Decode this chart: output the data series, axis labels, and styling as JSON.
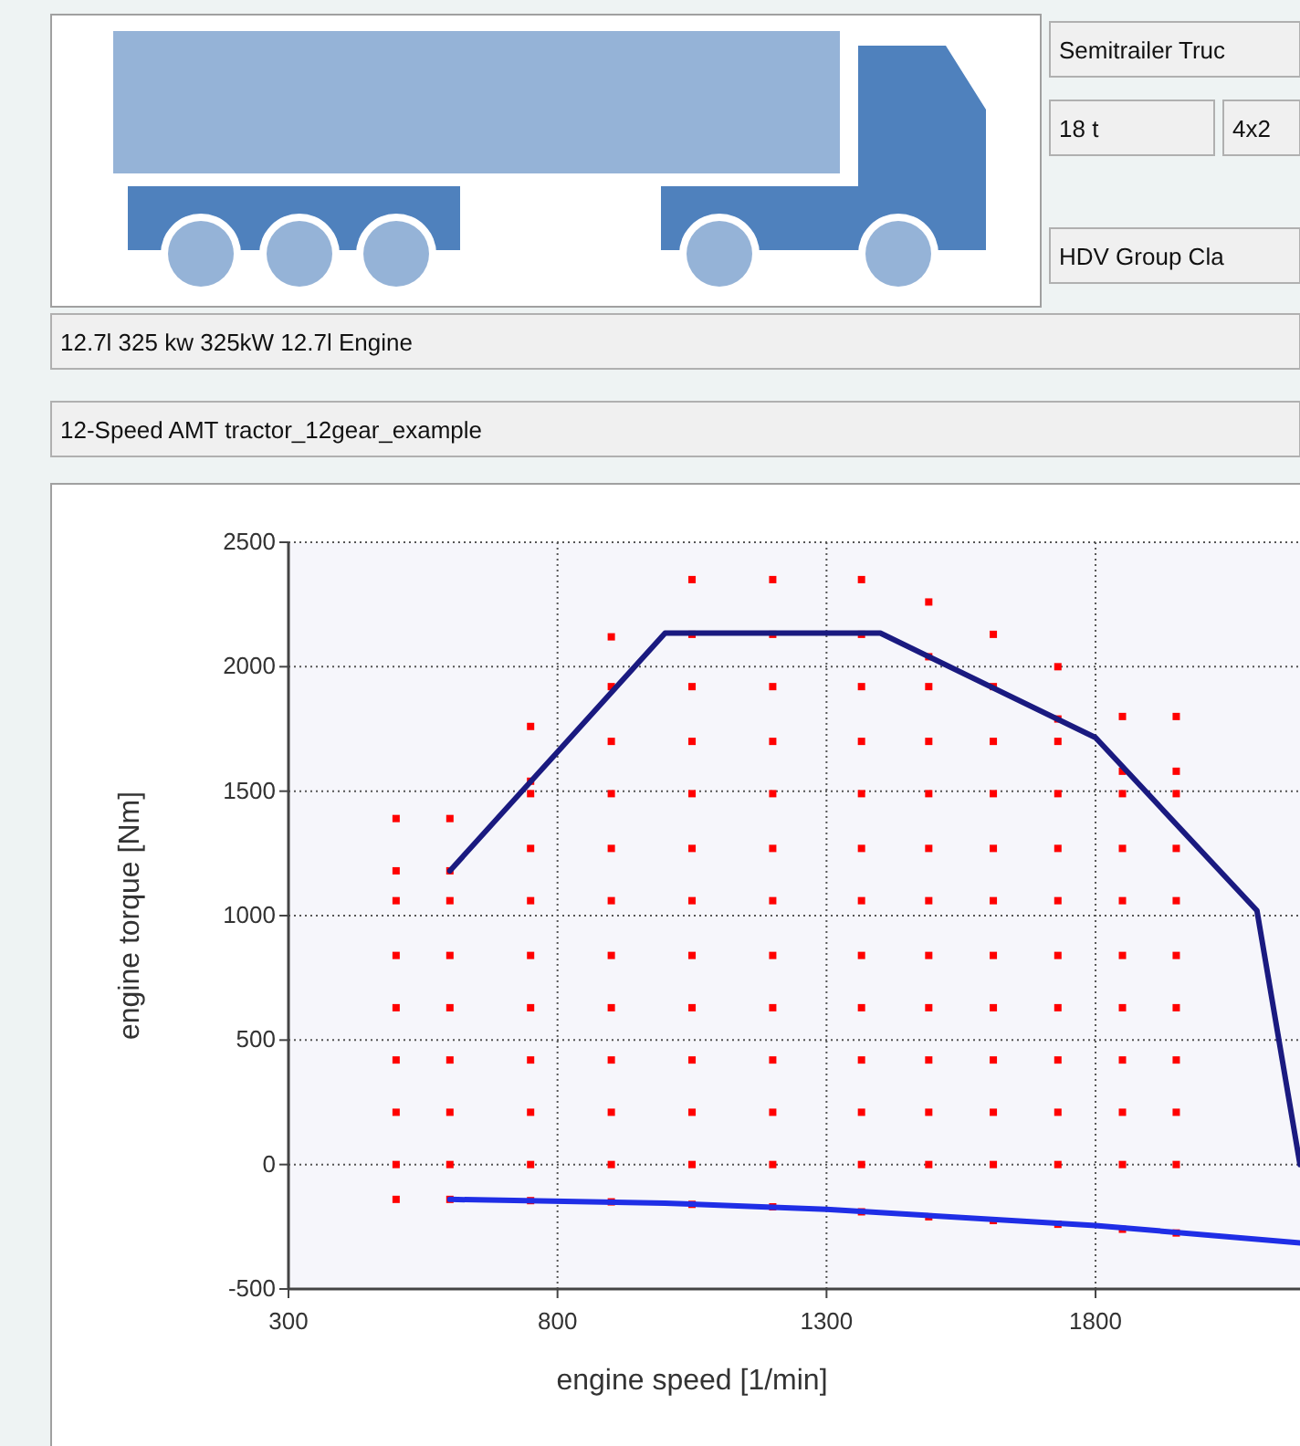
{
  "chart_data": {
    "type": "scatter",
    "xlabel": "engine speed [1/min]",
    "ylabel": "engine torque [Nm]",
    "annotations": [
      "Semitrailer Truc",
      "18 t",
      "4x2",
      "HDV Group Cla",
      "12.7l 325 kw 325kW 12.7l Engine",
      "12-Speed AMT tractor_12gear_example"
    ],
    "xlim": [
      300,
      2180
    ],
    "ylim": [
      -500,
      2500
    ],
    "xticks": [
      300,
      800,
      1300,
      1800
    ],
    "yticks": [
      -500,
      0,
      500,
      1000,
      1500,
      2000,
      2500
    ],
    "grid": true,
    "series": [
      {
        "color": "#ff0000",
        "marker": "square",
        "x": [
          500,
          500,
          500,
          500,
          500,
          500,
          500,
          500,
          500,
          600,
          600,
          600,
          600,
          600,
          600,
          600,
          600,
          600,
          750,
          750,
          750,
          750,
          750,
          750,
          750,
          750,
          750,
          750,
          750,
          900,
          900,
          900,
          900,
          900,
          900,
          900,
          900,
          900,
          900,
          900,
          900,
          1050,
          1050,
          1050,
          1050,
          1050,
          1050,
          1050,
          1050,
          1050,
          1050,
          1050,
          1050,
          1050,
          1200,
          1200,
          1200,
          1200,
          1200,
          1200,
          1200,
          1200,
          1200,
          1200,
          1200,
          1200,
          1200,
          1365,
          1365,
          1365,
          1365,
          1365,
          1365,
          1365,
          1365,
          1365,
          1365,
          1365,
          1365,
          1365,
          1490,
          1490,
          1490,
          1490,
          1490,
          1490,
          1490,
          1490,
          1490,
          1490,
          1490,
          1490,
          1490,
          1610,
          1610,
          1610,
          1610,
          1610,
          1610,
          1610,
          1610,
          1610,
          1610,
          1610,
          1610,
          1730,
          1730,
          1730,
          1730,
          1730,
          1730,
          1730,
          1730,
          1730,
          1730,
          1730,
          1730,
          1850,
          1850,
          1850,
          1850,
          1850,
          1850,
          1850,
          1850,
          1850,
          1850,
          1850,
          1950,
          1950,
          1950,
          1950,
          1950,
          1950,
          1950,
          1950,
          1950,
          1950,
          1950
        ],
        "values": [
          1390,
          1180,
          1060,
          840,
          630,
          420,
          210,
          0,
          -140,
          1390,
          1180,
          1060,
          840,
          630,
          420,
          210,
          0,
          -140,
          1760,
          1540,
          1490,
          1270,
          1060,
          840,
          630,
          420,
          210,
          0,
          -145,
          2120,
          1920,
          1700,
          1490,
          1270,
          1060,
          840,
          630,
          420,
          210,
          0,
          -150,
          2350,
          2130,
          1920,
          1700,
          1490,
          1270,
          1060,
          840,
          630,
          420,
          210,
          0,
          -160,
          2350,
          2130,
          1920,
          1700,
          1490,
          1270,
          1060,
          840,
          630,
          420,
          210,
          0,
          -170,
          2350,
          2130,
          1920,
          1700,
          1490,
          1270,
          1060,
          840,
          630,
          420,
          210,
          0,
          -190,
          2260,
          2040,
          1920,
          1700,
          1490,
          1270,
          1060,
          840,
          630,
          420,
          210,
          0,
          -210,
          2130,
          1920,
          1700,
          1490,
          1270,
          1060,
          840,
          630,
          420,
          210,
          0,
          -225,
          2000,
          1790,
          1700,
          1490,
          1270,
          1060,
          840,
          630,
          420,
          210,
          0,
          -240,
          1800,
          1580,
          1490,
          1270,
          1060,
          840,
          630,
          420,
          210,
          0,
          -260,
          1800,
          1580,
          1490,
          1270,
          1060,
          840,
          630,
          420,
          210,
          0,
          -275
        ]
      },
      {
        "type": "line",
        "color": "#1a1a80",
        "line_style": "solid",
        "x": [
          600,
          1000,
          1400,
          1800,
          2100,
          2180
        ],
        "values": [
          1180,
          2135,
          2135,
          1715,
          1020,
          0
        ]
      },
      {
        "type": "line",
        "color": "#1f2ee6",
        "line_style": "solid",
        "x": [
          600,
          1000,
          1300,
          1800,
          2180
        ],
        "values": [
          -140,
          -155,
          -180,
          -245,
          -315
        ]
      }
    ]
  }
}
